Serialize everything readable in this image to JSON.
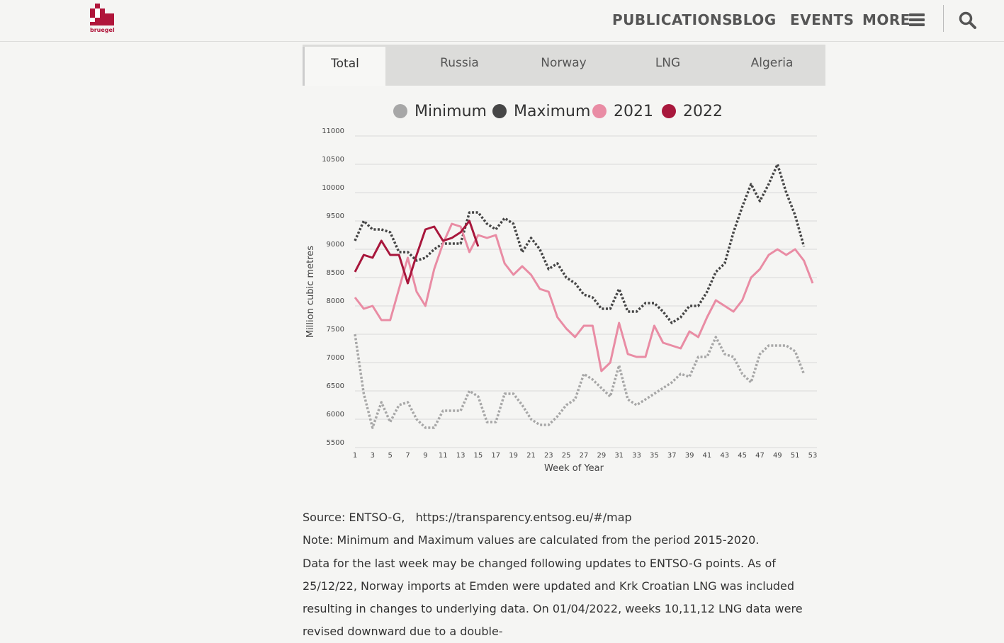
{
  "header": {
    "logo_text": "bruegel",
    "nav": [
      "PUBLICATIONS",
      "BLOG",
      "EVENTS",
      "MORE"
    ],
    "colors": {
      "brand": "#b0153a"
    }
  },
  "tabs": [
    {
      "label": "Total",
      "active": true
    },
    {
      "label": "Russia",
      "active": false
    },
    {
      "label": "Norway",
      "active": false
    },
    {
      "label": "LNG",
      "active": false
    },
    {
      "label": "Algeria",
      "active": false
    }
  ],
  "chart_data": {
    "type": "line",
    "xlabel": "Week of Year",
    "ylabel": "Million cubic metres",
    "ylim": [
      5500,
      11000
    ],
    "xlim": [
      1,
      53
    ],
    "yticks": [
      11000,
      10500,
      10000,
      9500,
      9000,
      8500,
      8000,
      7500,
      7000,
      6500,
      6000,
      5500
    ],
    "xticks": [
      1,
      3,
      5,
      7,
      9,
      11,
      13,
      15,
      17,
      19,
      21,
      23,
      25,
      27,
      29,
      31,
      33,
      35,
      37,
      39,
      41,
      43,
      45,
      47,
      49,
      51,
      53
    ],
    "grid": true,
    "legend_position": "top",
    "series": [
      {
        "name": "Minimum",
        "color": "#a7a7a7",
        "style": "dotted",
        "x": [
          1,
          2,
          3,
          4,
          5,
          6,
          7,
          8,
          9,
          10,
          11,
          12,
          13,
          14,
          15,
          16,
          17,
          18,
          19,
          20,
          21,
          22,
          23,
          24,
          25,
          26,
          27,
          28,
          29,
          30,
          31,
          32,
          33,
          34,
          35,
          36,
          37,
          38,
          39,
          40,
          41,
          42,
          43,
          44,
          45,
          46,
          47,
          48,
          49,
          50,
          51,
          52
        ],
        "values": [
          7500,
          6450,
          5850,
          6300,
          5950,
          6250,
          6300,
          6000,
          5850,
          5850,
          6150,
          6150,
          6150,
          6500,
          6400,
          5950,
          5950,
          6450,
          6450,
          6250,
          6000,
          5900,
          5900,
          6050,
          6250,
          6350,
          6800,
          6700,
          6550,
          6400,
          6950,
          6350,
          6250,
          6350,
          6450,
          6550,
          6650,
          6800,
          6750,
          7100,
          7100,
          7450,
          7150,
          7100,
          6800,
          6650,
          7150,
          7300,
          7300,
          7300,
          7200,
          6800
        ]
      },
      {
        "name": "Maximum",
        "color": "#464646",
        "style": "dotted",
        "x": [
          1,
          2,
          3,
          4,
          5,
          6,
          7,
          8,
          9,
          10,
          11,
          12,
          13,
          14,
          15,
          16,
          17,
          18,
          19,
          20,
          21,
          22,
          23,
          24,
          25,
          26,
          27,
          28,
          29,
          30,
          31,
          32,
          33,
          34,
          35,
          36,
          37,
          38,
          39,
          40,
          41,
          42,
          43,
          44,
          45,
          46,
          47,
          48,
          49,
          50,
          51,
          52
        ],
        "values": [
          9150,
          9500,
          9350,
          9350,
          9300,
          8950,
          8950,
          8800,
          8850,
          9000,
          9100,
          9100,
          9100,
          9650,
          9650,
          9450,
          9350,
          9550,
          9450,
          8950,
          9200,
          9000,
          8650,
          8750,
          8500,
          8400,
          8200,
          8150,
          7950,
          7950,
          8300,
          7900,
          7900,
          8050,
          8050,
          7900,
          7700,
          7800,
          8000,
          8000,
          8250,
          8600,
          8750,
          9300,
          9750,
          10150,
          9850,
          10150,
          10500,
          10000,
          9600,
          9050
        ]
      },
      {
        "name": "2021",
        "color": "#e98ca4",
        "style": "solid",
        "x": [
          1,
          2,
          3,
          4,
          5,
          6,
          7,
          8,
          9,
          10,
          11,
          12,
          13,
          14,
          15,
          16,
          17,
          18,
          19,
          20,
          21,
          22,
          23,
          24,
          25,
          26,
          27,
          28,
          29,
          30,
          31,
          32,
          33,
          34,
          35,
          36,
          37,
          38,
          39,
          40,
          41,
          42,
          43,
          44,
          45,
          46,
          47,
          48,
          49,
          50,
          51,
          52,
          53
        ],
        "values": [
          8150,
          7950,
          8000,
          7750,
          7750,
          8300,
          8850,
          8250,
          8000,
          8650,
          9100,
          9450,
          9400,
          8950,
          9250,
          9200,
          9250,
          8750,
          8550,
          8700,
          8550,
          8300,
          8250,
          7800,
          7600,
          7450,
          7650,
          7650,
          6850,
          7000,
          7700,
          7150,
          7100,
          7100,
          7650,
          7350,
          7300,
          7250,
          7550,
          7450,
          7800,
          8100,
          8000,
          7900,
          8100,
          8500,
          8650,
          8900,
          9000,
          8900,
          9000,
          8800,
          8400
        ]
      },
      {
        "name": "2022",
        "color": "#a8173c",
        "style": "solid",
        "x": [
          1,
          2,
          3,
          4,
          5,
          6,
          7,
          8,
          9,
          10,
          11,
          12,
          13,
          14,
          15
        ],
        "values": [
          8600,
          8900,
          8850,
          9150,
          8900,
          8900,
          8400,
          8900,
          9350,
          9400,
          9150,
          9200,
          9300,
          9500,
          9050
        ]
      }
    ]
  },
  "source": {
    "label": "Source: ENTSO-G,",
    "url": "https://transparency.entsog.eu/#/map",
    "note": "Note: Minimum and Maximum values are calculated from the period 2015-2020.",
    "data_note": "Data for the last week may be changed following updates to ENTSO-G points. As of 25/12/22, Norway imports at Emden were updated and Krk Croatian LNG was included resulting in changes to underlying data. On 01/04/2022, weeks 10,11,12 LNG data were revised downward due to a double-"
  }
}
